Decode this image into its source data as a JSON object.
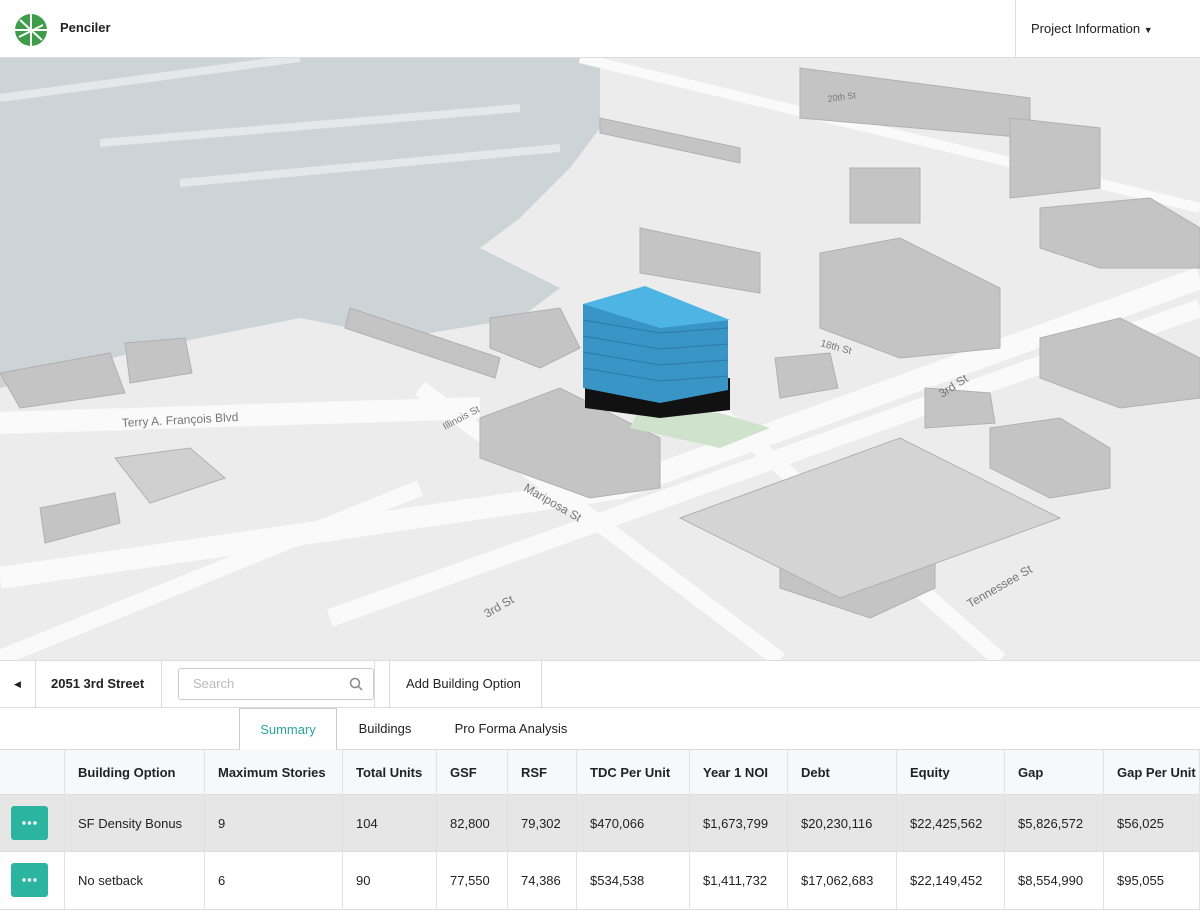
{
  "header": {
    "brand": "Penciler",
    "menu": "Project Information"
  },
  "map": {
    "street_labels": [
      "20th St",
      "18th St",
      "3rd St",
      "Terry A. François Blvd",
      "Illinois St",
      "Mariposa St",
      "3rd St",
      "Tennessee St"
    ]
  },
  "toolbar": {
    "project": "2051 3rd Street",
    "search_placeholder": "Search",
    "add_button": "Add Building Option"
  },
  "tabs": [
    "Summary",
    "Buildings",
    "Pro Forma Analysis"
  ],
  "table": {
    "columns": [
      "Building Option",
      "Maximum Stories",
      "Total Units",
      "GSF",
      "RSF",
      "TDC Per Unit",
      "Year 1 NOI",
      "Debt",
      "Equity",
      "Gap",
      "Gap Per Unit"
    ],
    "rows": [
      [
        "SF Density Bonus",
        "9",
        "104",
        "82,800",
        "79,302",
        "$470,066",
        "$1,673,799",
        "$20,230,116",
        "$22,425,562",
        "$5,826,572",
        "$56,025"
      ],
      [
        "No setback",
        "6",
        "90",
        "77,550",
        "74,386",
        "$534,538",
        "$1,411,732",
        "$17,062,683",
        "$22,149,452",
        "$8,554,990",
        "$95,055"
      ]
    ]
  }
}
